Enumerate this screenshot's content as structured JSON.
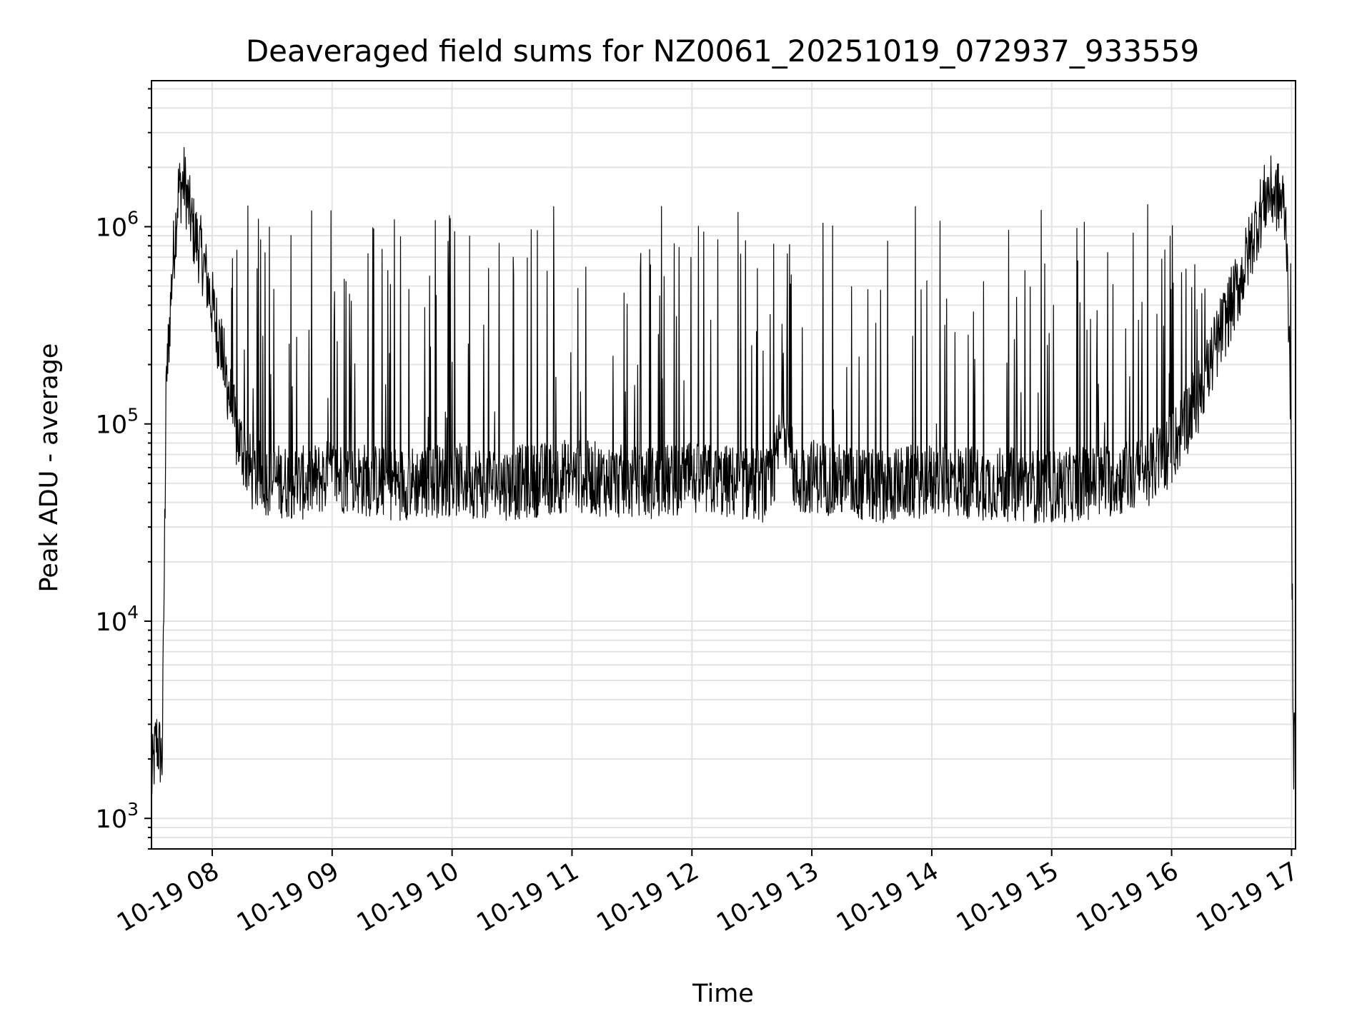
{
  "chart_data": {
    "type": "line",
    "title": "Deaveraged field sums for NZ0061_20251019_072937_933559",
    "xlabel": "Time",
    "ylabel": "Peak ADU - average",
    "x_type": "datetime",
    "xlim": [
      "2025-10-19T07:29:37",
      "2025-10-19T17:02:00"
    ],
    "x_ticks": [
      "2025-10-19T08:00",
      "2025-10-19T09:00",
      "2025-10-19T10:00",
      "2025-10-19T11:00",
      "2025-10-19T12:00",
      "2025-10-19T13:00",
      "2025-10-19T14:00",
      "2025-10-19T15:00",
      "2025-10-19T16:00",
      "2025-10-19T17:00"
    ],
    "x_tick_labels": [
      "10-19 08",
      "10-19 09",
      "10-19 10",
      "10-19 11",
      "10-19 12",
      "10-19 13",
      "10-19 14",
      "10-19 15",
      "10-19 16",
      "10-19 17"
    ],
    "y_scale": "log",
    "ylim": [
      700,
      5500000
    ],
    "y_ticks": [
      1000,
      10000,
      100000,
      1000000
    ],
    "y_tick_labels": [
      {
        "base": "10",
        "exp": "3"
      },
      {
        "base": "10",
        "exp": "4"
      },
      {
        "base": "10",
        "exp": "5"
      },
      {
        "base": "10",
        "exp": "6"
      }
    ],
    "grid": true,
    "series_color": "#000000",
    "grid_color": "#e3e3e3",
    "series": [
      {
        "x": [
          "2025-10-19T07:29:37",
          "2025-10-19T07:32:00",
          "2025-10-19T07:35:00",
          "2025-10-19T07:37:00",
          "2025-10-19T07:40:00",
          "2025-10-19T07:43:00",
          "2025-10-19T07:46:00",
          "2025-10-19T07:50:00",
          "2025-10-19T07:55:00",
          "2025-10-19T08:00:00",
          "2025-10-19T08:06:00",
          "2025-10-19T08:12:00",
          "2025-10-19T08:20:00",
          "2025-10-19T08:30:00",
          "2025-10-19T08:45:00",
          "2025-10-19T09:00:00",
          "2025-10-19T09:30:00",
          "2025-10-19T10:00:00",
          "2025-10-19T10:30:00",
          "2025-10-19T11:00:00",
          "2025-10-19T11:30:00",
          "2025-10-19T12:00:00",
          "2025-10-19T12:30:00",
          "2025-10-19T12:40:00",
          "2025-10-19T12:46:00",
          "2025-10-19T12:52:00",
          "2025-10-19T13:00:00",
          "2025-10-19T13:30:00",
          "2025-10-19T14:00:00",
          "2025-10-19T14:30:00",
          "2025-10-19T15:00:00",
          "2025-10-19T15:30:00",
          "2025-10-19T15:45:00",
          "2025-10-19T16:00:00",
          "2025-10-19T16:15:00",
          "2025-10-19T16:25:00",
          "2025-10-19T16:35:00",
          "2025-10-19T16:42:00",
          "2025-10-19T16:48:00",
          "2025-10-19T16:52:00",
          "2025-10-19T16:56:00",
          "2025-10-19T16:58:00",
          "2025-10-19T17:00:00",
          "2025-10-19T17:01:00",
          "2025-10-19T17:02:00"
        ],
        "values": [
          1500,
          2500,
          2000,
          150000,
          600000,
          1500000,
          1700000,
          1000000,
          700000,
          400000,
          200000,
          90000,
          55000,
          52000,
          50000,
          55000,
          50000,
          52000,
          50000,
          55000,
          50000,
          52000,
          50000,
          48000,
          110000,
          50000,
          55000,
          48000,
          52000,
          50000,
          48000,
          52000,
          55000,
          75000,
          150000,
          300000,
          550000,
          1000000,
          1500000,
          1450000,
          1300000,
          800000,
          40000,
          2000,
          2800
        ]
      }
    ]
  }
}
